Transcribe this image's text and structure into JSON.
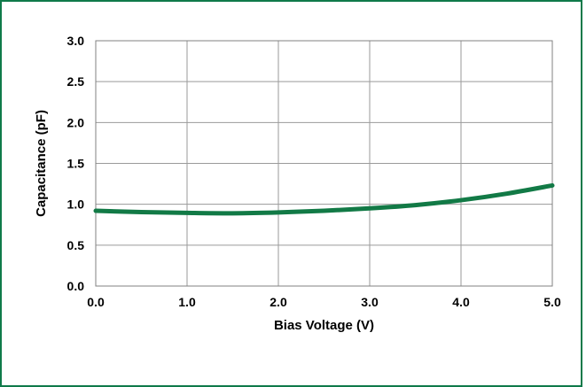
{
  "chart_data": {
    "type": "line",
    "title": "",
    "xlabel": "Bias Voltage (V)",
    "ylabel": "Capacitance (pF)",
    "xlim": [
      0.0,
      5.0
    ],
    "ylim": [
      0.0,
      3.0
    ],
    "x_ticks": [
      "0.0",
      "1.0",
      "2.0",
      "3.0",
      "4.0",
      "5.0"
    ],
    "y_ticks": [
      "0.0",
      "0.5",
      "1.0",
      "1.5",
      "2.0",
      "2.5",
      "3.0"
    ],
    "grid": true,
    "legend": "none",
    "series": [
      {
        "color": "#127a46",
        "x": [
          0.0,
          0.5,
          1.0,
          1.5,
          2.0,
          2.5,
          3.0,
          3.5,
          4.0,
          4.5,
          5.0
        ],
        "y": [
          0.92,
          0.905,
          0.895,
          0.89,
          0.9,
          0.92,
          0.95,
          0.99,
          1.05,
          1.13,
          1.23
        ]
      }
    ]
  }
}
